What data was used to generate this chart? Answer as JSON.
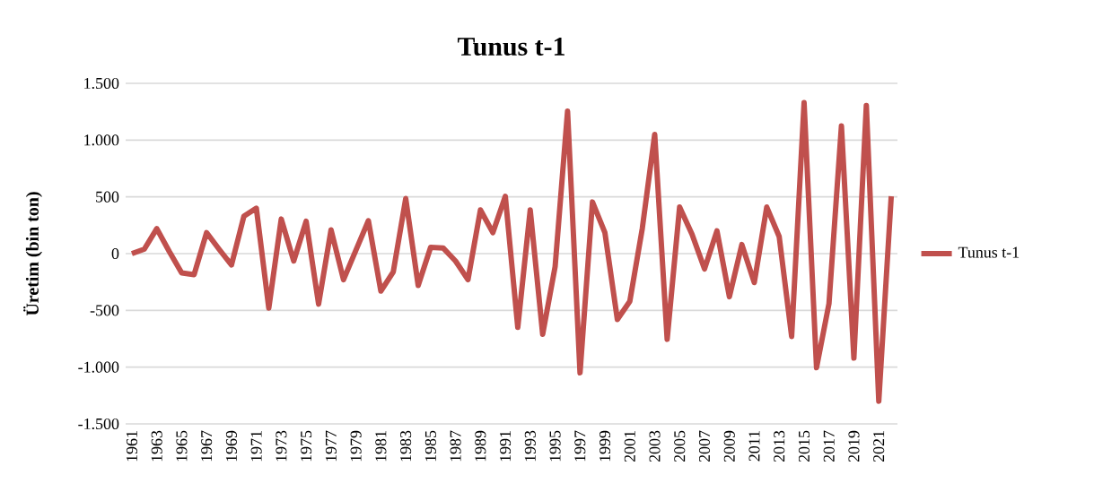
{
  "chart_data": {
    "type": "line",
    "title": "Tunus t-1",
    "ylabel": "Üretim (bin ton)",
    "categories": [
      "1961",
      null,
      "1963",
      null,
      "1965",
      null,
      "1967",
      null,
      "1969",
      null,
      "1971",
      null,
      "1973",
      null,
      "1975",
      null,
      "1977",
      null,
      "1979",
      null,
      "1981",
      null,
      "1983",
      null,
      "1985",
      null,
      "1987",
      null,
      "1989",
      null,
      "1991",
      null,
      "1993",
      null,
      "1995",
      null,
      "1997",
      null,
      "1999",
      null,
      "2001",
      null,
      "2003",
      null,
      "2005",
      null,
      "2007",
      null,
      "2009",
      null,
      "2011",
      null,
      "2013",
      null,
      "2015",
      null,
      "2017",
      null,
      "2019",
      null,
      "2021",
      null
    ],
    "series": [
      {
        "name": "Tunus t-1",
        "color": "#c0504d",
        "values": [
          0,
          40,
          220,
          20,
          -170,
          -185,
          185,
          40,
          -100,
          330,
          400,
          -480,
          305,
          -65,
          285,
          -445,
          210,
          -230,
          30,
          290,
          -330,
          -160,
          485,
          -280,
          55,
          50,
          -65,
          -230,
          385,
          185,
          505,
          -650,
          385,
          -710,
          -115,
          1255,
          -1050,
          455,
          185,
          -580,
          -420,
          220,
          1050,
          -755,
          410,
          170,
          -135,
          200,
          -380,
          80,
          -255,
          410,
          150,
          -730,
          1330,
          -1005,
          -440,
          1125,
          -920,
          1305,
          -1300,
          505
        ]
      }
    ],
    "ylim": [
      -1500,
      1500
    ],
    "yticks": [
      {
        "value": -1500,
        "label": "-1.500"
      },
      {
        "value": -1000,
        "label": "-1.000"
      },
      {
        "value": -500,
        "label": "-500"
      },
      {
        "value": 0,
        "label": "0"
      },
      {
        "value": 500,
        "label": "500"
      },
      {
        "value": 1000,
        "label": "1.000"
      },
      {
        "value": 1500,
        "label": "1.500"
      }
    ],
    "grid": "y",
    "legend": "right",
    "marker": "none",
    "line_style": "solid"
  }
}
